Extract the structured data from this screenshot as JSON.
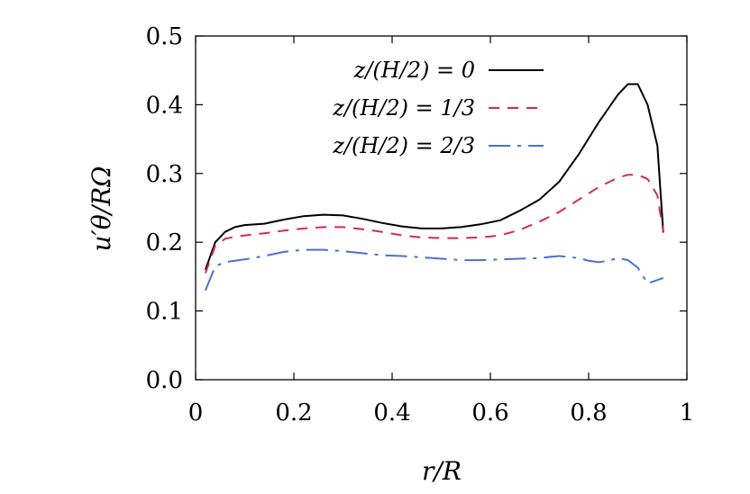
{
  "chart_data": {
    "type": "line",
    "title": "",
    "xlabel": "r/R",
    "ylabel": "u′θ/RΩ",
    "xlim": [
      0,
      1
    ],
    "ylim": [
      0,
      0.5
    ],
    "x_ticks": [
      0,
      0.2,
      0.4,
      0.6,
      0.8,
      1
    ],
    "x_tick_labels": [
      "0",
      "0.2",
      "0.4",
      "0.6",
      "0.8",
      "1"
    ],
    "y_ticks": [
      0,
      0.1,
      0.2,
      0.3,
      0.4,
      0.5
    ],
    "y_tick_labels": [
      "0.0",
      "0.1",
      "0.2",
      "0.3",
      "0.4",
      "0.5"
    ],
    "grid": false,
    "legend_position": "top-right",
    "series": [
      {
        "name": "z/(H/2) = 0",
        "color": "#000000",
        "dash": "solid",
        "x": [
          0.02,
          0.04,
          0.06,
          0.08,
          0.1,
          0.14,
          0.18,
          0.22,
          0.26,
          0.3,
          0.34,
          0.38,
          0.42,
          0.46,
          0.5,
          0.54,
          0.58,
          0.62,
          0.66,
          0.7,
          0.74,
          0.78,
          0.82,
          0.86,
          0.88,
          0.9,
          0.92,
          0.94,
          0.952
        ],
        "y": [
          0.16,
          0.2,
          0.215,
          0.222,
          0.225,
          0.227,
          0.233,
          0.238,
          0.24,
          0.239,
          0.234,
          0.228,
          0.223,
          0.22,
          0.22,
          0.222,
          0.226,
          0.232,
          0.246,
          0.262,
          0.288,
          0.328,
          0.374,
          0.415,
          0.43,
          0.43,
          0.4,
          0.34,
          0.214
        ]
      },
      {
        "name": "z/(H/2) = 1/3",
        "color": "#d6294e",
        "dash": "dashed",
        "x": [
          0.02,
          0.04,
          0.06,
          0.08,
          0.1,
          0.14,
          0.18,
          0.22,
          0.26,
          0.3,
          0.34,
          0.38,
          0.42,
          0.46,
          0.5,
          0.54,
          0.58,
          0.62,
          0.66,
          0.7,
          0.74,
          0.78,
          0.82,
          0.86,
          0.88,
          0.9,
          0.92,
          0.94,
          0.952
        ],
        "y": [
          0.155,
          0.195,
          0.205,
          0.208,
          0.21,
          0.213,
          0.217,
          0.22,
          0.222,
          0.222,
          0.219,
          0.215,
          0.21,
          0.207,
          0.206,
          0.206,
          0.207,
          0.21,
          0.218,
          0.23,
          0.244,
          0.262,
          0.28,
          0.294,
          0.298,
          0.298,
          0.292,
          0.268,
          0.215
        ]
      },
      {
        "name": "z/(H/2) = 2/3",
        "color": "#4a6fd8",
        "dash": "dashdot",
        "x": [
          0.02,
          0.04,
          0.06,
          0.08,
          0.1,
          0.14,
          0.18,
          0.22,
          0.26,
          0.3,
          0.34,
          0.38,
          0.42,
          0.46,
          0.5,
          0.54,
          0.58,
          0.62,
          0.66,
          0.7,
          0.74,
          0.78,
          0.8,
          0.82,
          0.84,
          0.86,
          0.88,
          0.9,
          0.92,
          0.952
        ],
        "y": [
          0.13,
          0.165,
          0.171,
          0.173,
          0.175,
          0.18,
          0.186,
          0.189,
          0.189,
          0.187,
          0.184,
          0.181,
          0.18,
          0.178,
          0.176,
          0.174,
          0.174,
          0.175,
          0.176,
          0.177,
          0.18,
          0.177,
          0.173,
          0.171,
          0.173,
          0.177,
          0.174,
          0.163,
          0.14,
          0.148
        ]
      }
    ]
  }
}
